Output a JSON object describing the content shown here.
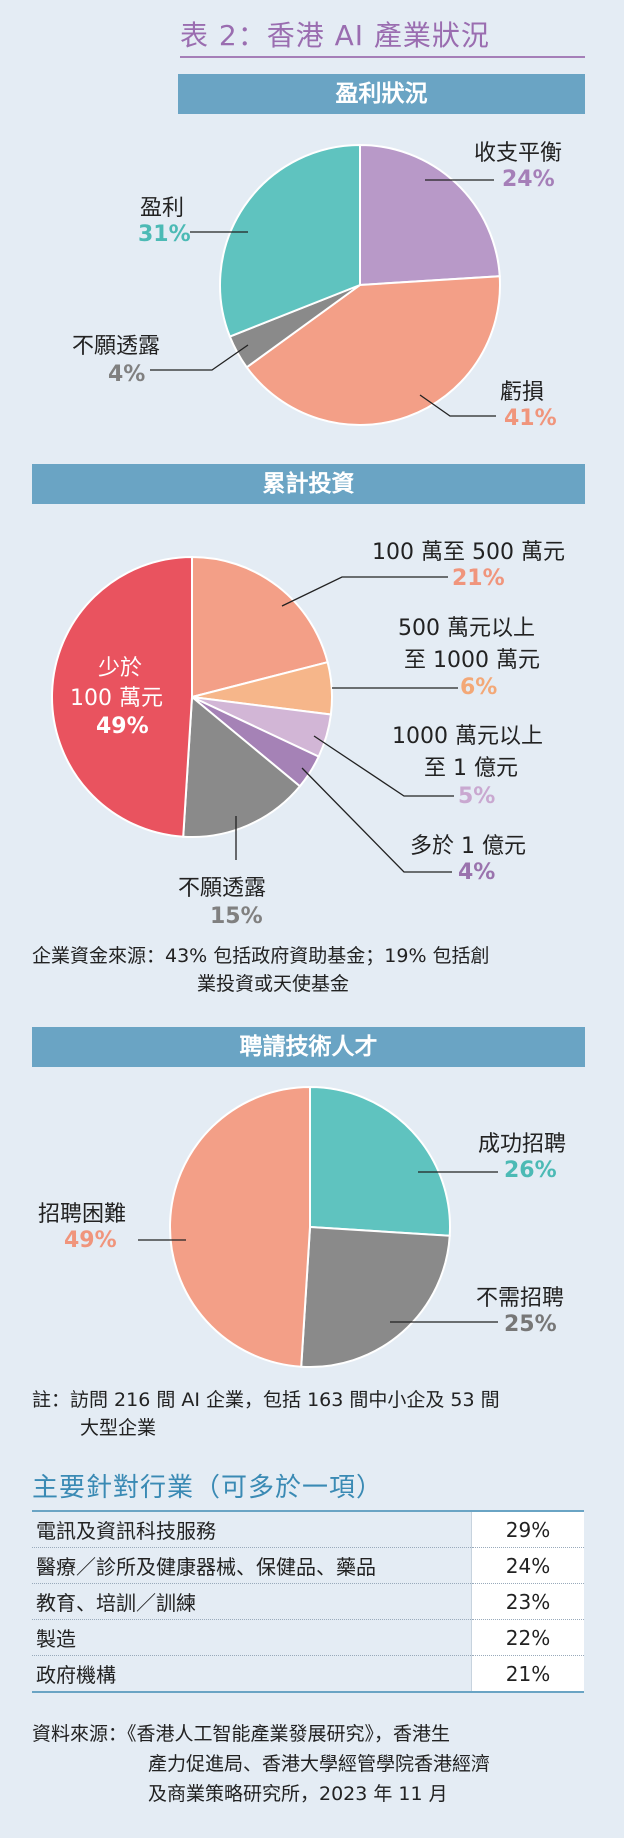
{
  "title": "表 2：香港 AI 產業狀況",
  "chart_data": [
    {
      "type": "pie",
      "title": "盈利狀況",
      "slices": [
        {
          "label": "收支平衡",
          "value": 24,
          "value_text": "24%",
          "color": "#b899c8",
          "text_color": "#a57fb8"
        },
        {
          "label": "虧損",
          "value": 41,
          "value_text": "41%",
          "color": "#f39f87",
          "text_color": "#f0957c"
        },
        {
          "label": "不願透露",
          "value": 4,
          "value_text": "4%",
          "color": "#8a8a8a",
          "text_color": "#808080"
        },
        {
          "label": "盈利",
          "value": 31,
          "value_text": "31%",
          "color": "#5fc3bf",
          "text_color": "#4cbab5"
        }
      ]
    },
    {
      "type": "pie",
      "title": "累計投資",
      "slices": [
        {
          "label": "100 萬至 500 萬元",
          "value": 21,
          "value_text": "21%",
          "color": "#f39f87",
          "text_color": "#f0957c"
        },
        {
          "label": "500 萬元以上 至 1000 萬元",
          "value": 6,
          "value_text": "6%",
          "color": "#f6b68a",
          "text_color": "#f3a877"
        },
        {
          "label": "1000 萬元以上 至 1 億元",
          "value": 5,
          "value_text": "5%",
          "color": "#d2b6d6",
          "text_color": "#c9a8d0"
        },
        {
          "label": "多於 1 億元",
          "value": 4,
          "value_text": "4%",
          "color": "#a582b6",
          "text_color": "#9a73ad"
        },
        {
          "label": "不願透露",
          "value": 15,
          "value_text": "15%",
          "color": "#8a8a8a",
          "text_color": "#808080"
        },
        {
          "label": "少於 100 萬元",
          "value": 49,
          "value_text": "49%",
          "color": "#e9535f",
          "text_color": "#ffffff"
        }
      ]
    },
    {
      "type": "pie",
      "title": "聘請技術人才",
      "slices": [
        {
          "label": "成功招聘",
          "value": 26,
          "value_text": "26%",
          "color": "#5fc3bf",
          "text_color": "#4cbab5"
        },
        {
          "label": "不需招聘",
          "value": 25,
          "value_text": "25%",
          "color": "#8a8a8a",
          "text_color": "#777777"
        },
        {
          "label": "招聘困難",
          "value": 49,
          "value_text": "49%",
          "color": "#f39f87",
          "text_color": "#f0957c"
        }
      ]
    }
  ],
  "labels": {
    "c1": {
      "l0": "收支平衡",
      "l1": "虧損",
      "l2": "不願透露",
      "l3": "盈利"
    },
    "c2": {
      "l0": "100 萬至 500 萬元",
      "l1a": "500 萬元以上",
      "l1b": "至 1000 萬元",
      "l2a": "1000 萬元以上",
      "l2b": "至 1 億元",
      "l3": "多於 1 億元",
      "l4": "不願透露",
      "l5a": "少於",
      "l5b": "100 萬元"
    },
    "c3": {
      "l0": "成功招聘",
      "l1": "不需招聘",
      "l2": "招聘困難"
    }
  },
  "funding_note": {
    "line1": "企業資金來源：43% 包括政府資助基金；19% 包括創",
    "line2": "業投資或天使基金"
  },
  "survey_note": {
    "line1": "註：訪問 216 間 AI 企業，包括 163 間中小企及 53 間",
    "line2": "大型企業"
  },
  "industries": {
    "heading": "主要針對行業（可多於一項）",
    "rows": [
      {
        "name": "電訊及資訊科技服務",
        "value": "29%"
      },
      {
        "name": "醫療／診所及健康器械、保健品、藥品",
        "value": "24%"
      },
      {
        "name": "教育、培訓／訓練",
        "value": "23%"
      },
      {
        "name": "製造",
        "value": "22%"
      },
      {
        "name": "政府機構",
        "value": "21%"
      }
    ]
  },
  "source": {
    "line1": "資料來源：《香港人工智能產業發展研究》，香港生",
    "line2": "產力促進局、香港大學經管學院香港經濟",
    "line3": "及商業策略研究所，2023 年 11 月"
  }
}
